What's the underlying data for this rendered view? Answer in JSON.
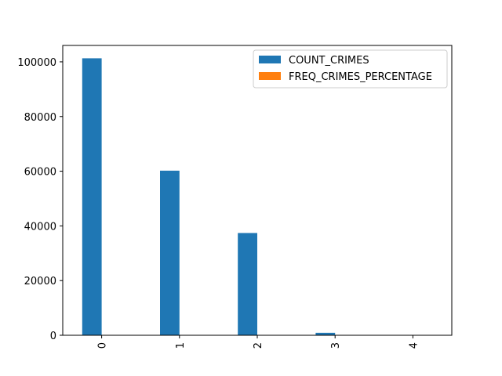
{
  "chart_data": {
    "type": "bar",
    "categories": [
      "0",
      "1",
      "2",
      "3",
      "4"
    ],
    "series": [
      {
        "name": "COUNT_CRIMES",
        "color": "#1f77b4",
        "values": [
          101300,
          60200,
          37400,
          900,
          60
        ]
      },
      {
        "name": "FREQ_CRIMES_PERCENTAGE",
        "color": "#ff7f0e",
        "values": [
          50.6,
          30.1,
          18.7,
          0.45,
          0.03
        ]
      }
    ],
    "title": "",
    "xlabel": "",
    "ylabel": "",
    "ylim": [
      0,
      106000
    ],
    "yticks": [
      0,
      20000,
      40000,
      60000,
      80000,
      100000
    ],
    "ytick_labels": [
      "0",
      "20000",
      "40000",
      "60000",
      "80000",
      "100000"
    ],
    "xtick_rotation": "vertical",
    "legend_position": "upper right",
    "grid": false
  }
}
